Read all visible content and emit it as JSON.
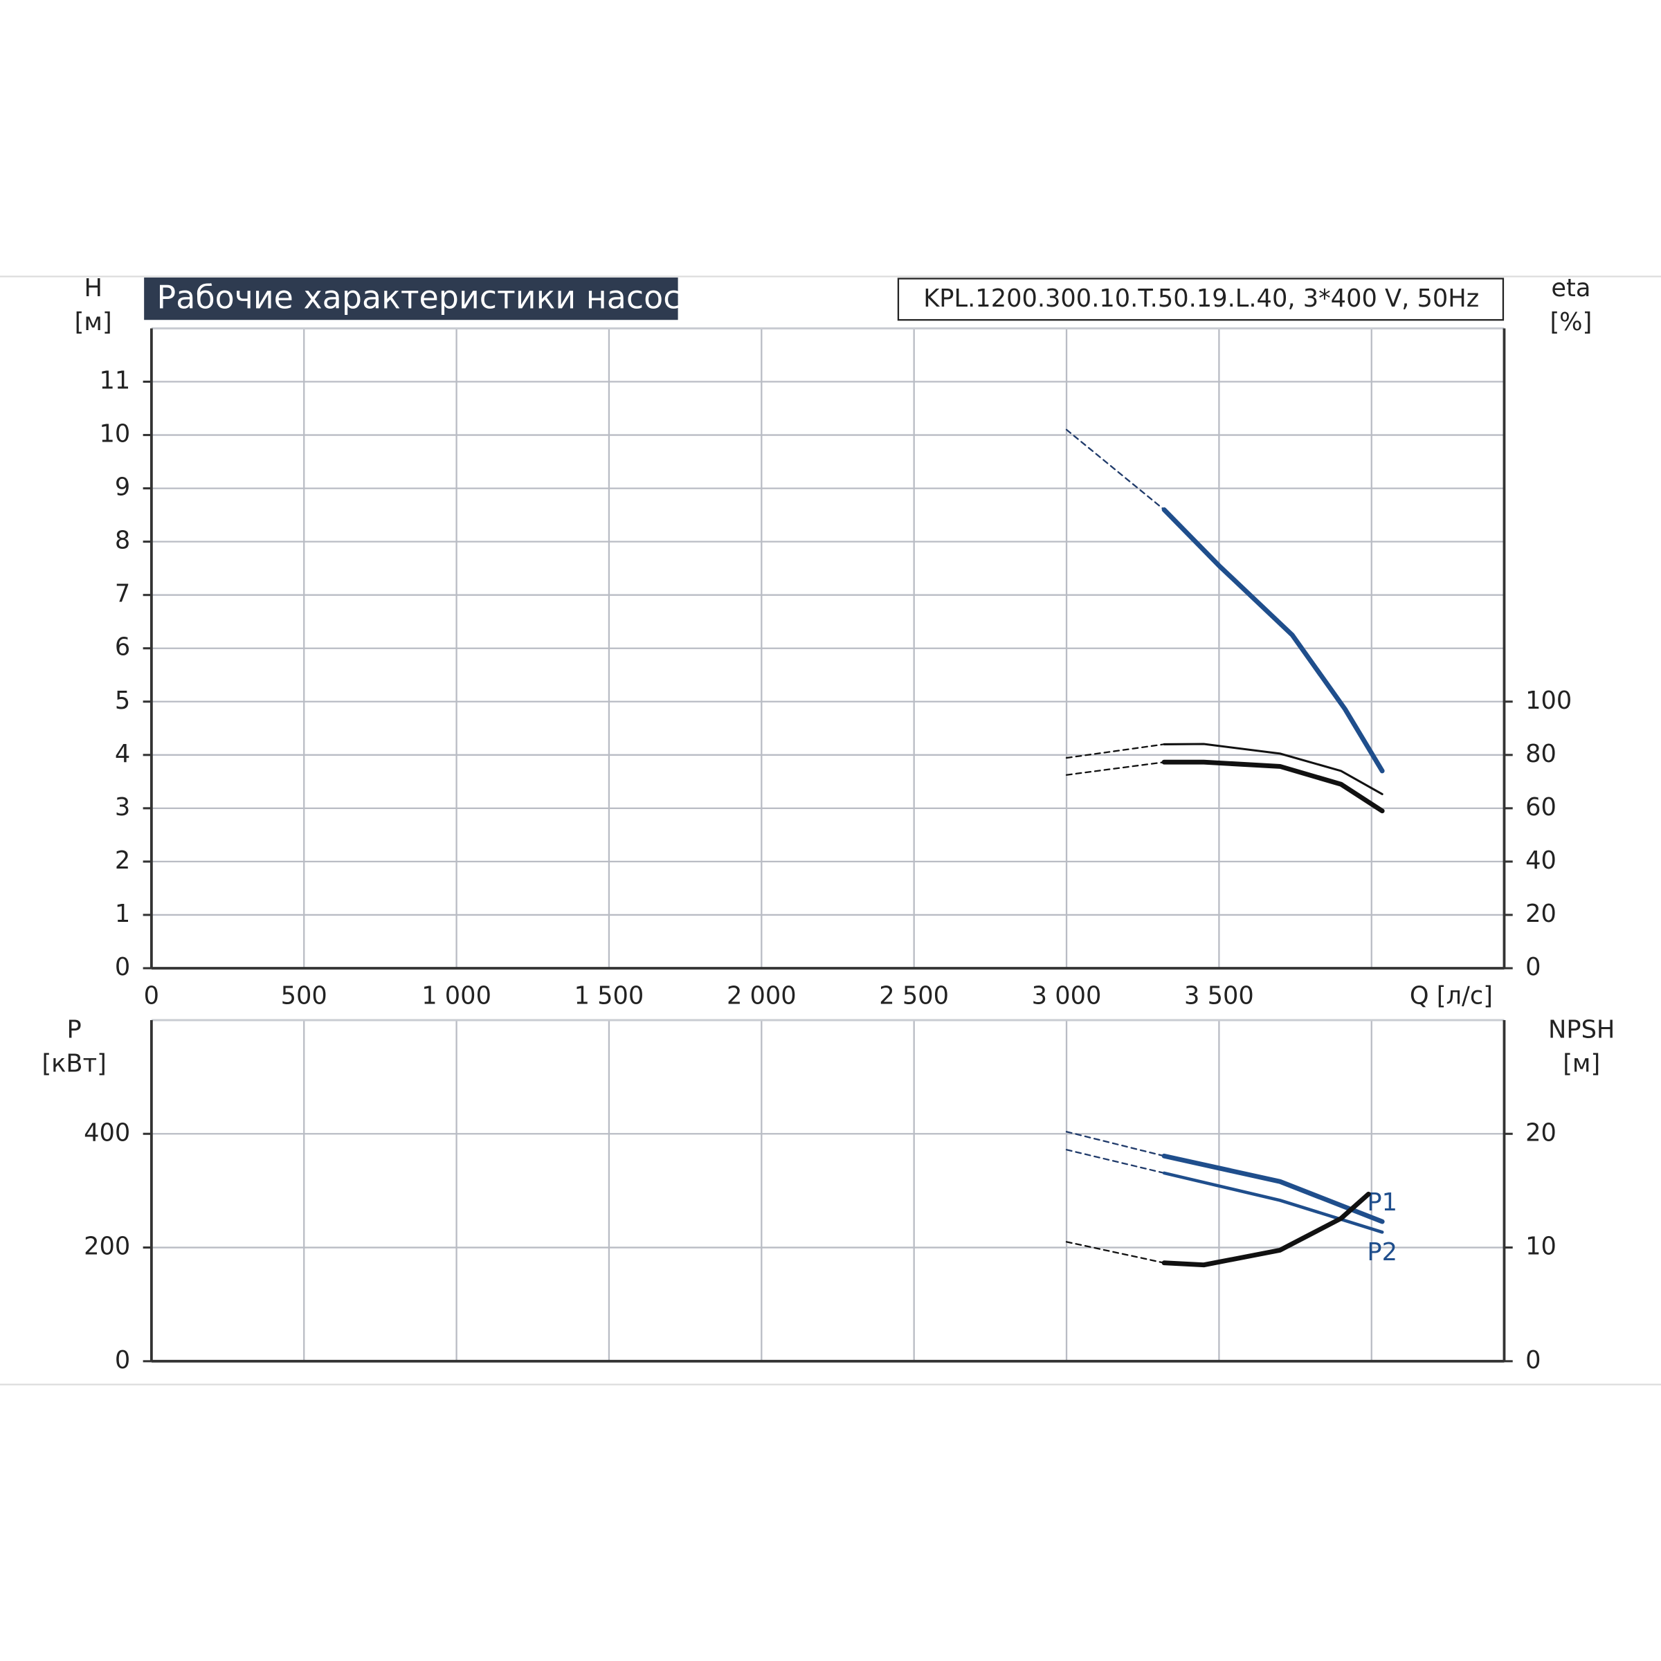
{
  "chart_data": [
    {
      "type": "line",
      "title": "Рабочие характеристики насоса",
      "subtitle": "KPL.1200.300.10.T.50.19.L.40, 3*400 V, 50Hz",
      "xlabel": "Q [л/с]",
      "ylabel": [
        "H",
        "[м]"
      ],
      "y2label": [
        "eta",
        "[%]"
      ],
      "xlim": [
        0,
        4435
      ],
      "ylim": [
        0,
        12
      ],
      "y2lim": [
        0,
        240
      ],
      "grid": true,
      "xticks": [
        0,
        {
          "value": 500,
          "label": "500"
        },
        {
          "value": 1000,
          "label": "1 000"
        },
        {
          "value": 1500,
          "label": "1 500"
        },
        {
          "value": 2000,
          "label": "2 000"
        },
        {
          "value": 2500,
          "label": "2 500"
        },
        {
          "value": 3000,
          "label": "3 000"
        },
        {
          "value": 3500,
          "label": "3 500"
        },
        {
          "value": 4000,
          "label": null
        }
      ],
      "yticks": [
        0,
        1,
        2,
        3,
        4,
        5,
        6,
        7,
        8,
        9,
        10,
        11
      ],
      "y2ticks": [
        0,
        20,
        40,
        60,
        80,
        100
      ],
      "series": [
        {
          "color": "#1f3a6a",
          "linewidth": 1.5,
          "dashed": true,
          "x": [
            3000,
            3320
          ],
          "values": [
            10.1,
            8.6
          ]
        },
        {
          "color": "#1f4e8c",
          "linewidth": 4.5,
          "dashed": false,
          "x": [
            3320,
            3500,
            3740,
            3913,
            4035
          ],
          "values": [
            8.6,
            7.55,
            6.25,
            4.86,
            3.7
          ]
        },
        {
          "color": "#111111",
          "linewidth": 1.5,
          "dashed": true,
          "axis": "y2",
          "x": [
            3000,
            3320
          ],
          "values": [
            78.9,
            84
          ]
        },
        {
          "color": "#111111",
          "linewidth": 2,
          "dashed": false,
          "axis": "y2",
          "x": [
            3320,
            3450,
            3700,
            3900,
            4035
          ],
          "values": [
            84,
            84.1,
            80.5,
            74,
            65.3
          ]
        },
        {
          "color": "#111111",
          "linewidth": 1.5,
          "dashed": true,
          "axis": "y2",
          "x": [
            3000,
            3320
          ],
          "values": [
            72.5,
            77.3
          ]
        },
        {
          "color": "#111111",
          "linewidth": 4.5,
          "dashed": false,
          "axis": "y2",
          "x": [
            3320,
            3450,
            3700,
            3900,
            4035
          ],
          "values": [
            77.3,
            77.3,
            75.7,
            69,
            59
          ]
        }
      ]
    },
    {
      "type": "line",
      "ylabel": [
        "P",
        "[кВт]"
      ],
      "y2label": [
        "NPSH",
        "[м]"
      ],
      "xlim": [
        0,
        4435
      ],
      "ylim": [
        0,
        600
      ],
      "y2lim": [
        0,
        30
      ],
      "grid": true,
      "xticks": [
        {
          "value": 0,
          "label": null
        },
        {
          "value": 500,
          "label": null
        },
        {
          "value": 1000,
          "label": null
        },
        {
          "value": 1500,
          "label": null
        },
        {
          "value": 2000,
          "label": null
        },
        {
          "value": 2500,
          "label": null
        },
        {
          "value": 3000,
          "label": null
        },
        {
          "value": 3500,
          "label": null
        },
        {
          "value": 4000,
          "label": null
        }
      ],
      "yticks": [
        0,
        200,
        400
      ],
      "y2ticks": [
        0,
        10,
        20
      ],
      "series": [
        {
          "color": "#1f3a6a",
          "linewidth": 1.5,
          "dashed": true,
          "x": [
            3000,
            3320
          ],
          "values": [
            403.7,
            361
          ]
        },
        {
          "name": "P1",
          "color": "#1f4e8c",
          "linewidth": 4.5,
          "dashed": false,
          "x": [
            3320,
            3700,
            4035
          ],
          "values": [
            361,
            316,
            245.6
          ]
        },
        {
          "color": "#1f3a6a",
          "linewidth": 1.5,
          "dashed": true,
          "x": [
            3000,
            3320
          ],
          "values": [
            372,
            331
          ]
        },
        {
          "name": "P2",
          "color": "#1f4e8c",
          "linewidth": 3,
          "dashed": false,
          "x": [
            3320,
            3700,
            4035
          ],
          "values": [
            331,
            283,
            227
          ]
        },
        {
          "color": "#111111",
          "linewidth": 1.5,
          "dashed": true,
          "axis": "y2",
          "x": [
            3000,
            3320
          ],
          "values": [
            10.5,
            8.65
          ]
        },
        {
          "color": "#111111",
          "linewidth": 4.5,
          "dashed": false,
          "axis": "y2",
          "x": [
            3320,
            3450,
            3700,
            3900,
            3990
          ],
          "values": [
            8.65,
            8.47,
            9.77,
            12.56,
            14.7
          ]
        }
      ]
    }
  ]
}
